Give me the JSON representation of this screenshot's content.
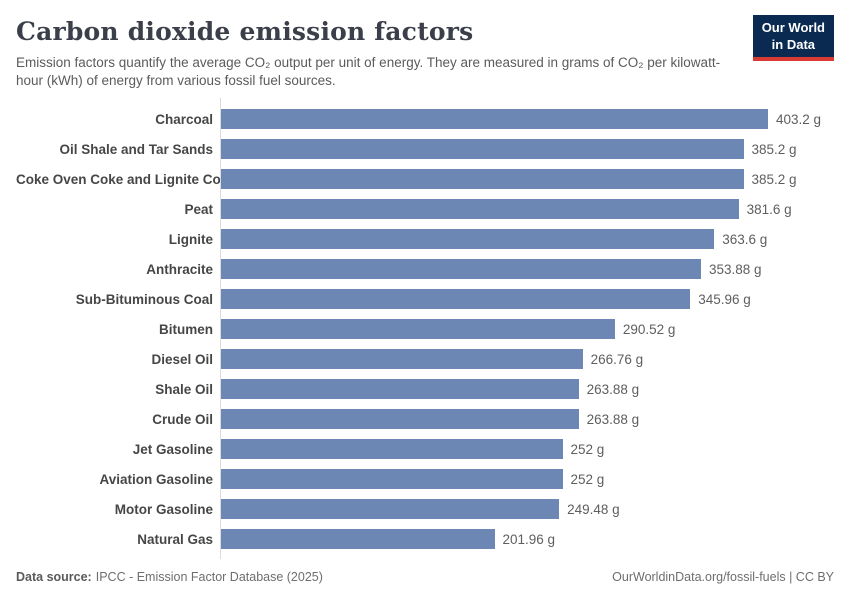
{
  "header": {
    "title": "Carbon dioxide emission factors",
    "subtitle": "Emission factors quantify the average CO₂ output per unit of energy. They are measured in grams of CO₂ per kilowatt-hour (kWh) of energy from various fossil fuel sources.",
    "logo": {
      "line1": "Our World",
      "line2": "in Data"
    }
  },
  "chart_data": {
    "type": "bar",
    "orientation": "horizontal",
    "title": "Carbon dioxide emission factors",
    "subtitle": "Emission factors quantify the average CO₂ output per unit of energy. They are measured in grams of CO₂ per kilowatt-hour (kWh) of energy from various fossil fuel sources.",
    "unit": "grams of CO₂ per kWh",
    "grid": false,
    "xlim": [
      0,
      403.2
    ],
    "bar_color": "#6d87b4",
    "categories": [
      "Charcoal",
      "Oil Shale and Tar Sands",
      "Coke Oven Coke and Lignite Coke",
      "Peat",
      "Lignite",
      "Anthracite",
      "Sub-Bituminous Coal",
      "Bitumen",
      "Diesel Oil",
      "Shale Oil",
      "Crude Oil",
      "Jet Gasoline",
      "Aviation Gasoline",
      "Motor Gasoline",
      "Natural Gas"
    ],
    "values": [
      403.2,
      385.2,
      385.2,
      381.6,
      363.6,
      353.88,
      345.96,
      290.52,
      266.76,
      263.88,
      263.88,
      252,
      252,
      249.48,
      201.96
    ],
    "value_labels": [
      "403.2 g",
      "385.2 g",
      "385.2 g",
      "381.6 g",
      "363.6 g",
      "353.88 g",
      "345.96 g",
      "290.52 g",
      "266.76 g",
      "263.88 g",
      "263.88 g",
      "252 g",
      "252 g",
      "249.48 g",
      "201.96 g"
    ]
  },
  "footer": {
    "source_label": "Data source:",
    "source_text": "IPCC - Emission Factor Database (2025)",
    "link_text": "OurWorldinData.org/fossil-fuels | CC BY"
  },
  "colors": {
    "bar": "#6d87b4",
    "logo_bg": "#0a2a51",
    "logo_accent": "#d93a34",
    "title_text": "#3a3f49",
    "body_text": "#5b5b5b",
    "axis_line": "#dcdcdc"
  }
}
